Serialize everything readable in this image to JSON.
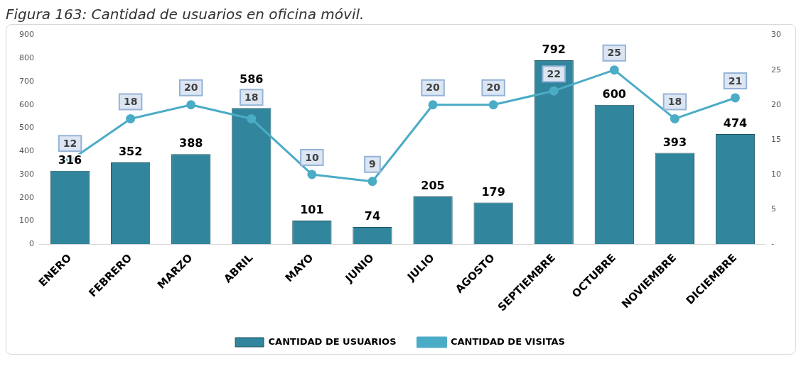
{
  "chart_data": {
    "type": "bar",
    "title": "Figura 163: Cantidad de usuarios en oficina móvil.",
    "categories": [
      "ENERO",
      "FEBRERO",
      "MARZO",
      "ABRIL",
      "MAYO",
      "JUNIO",
      "JULIO",
      "AGOSTO",
      "SEPTIEMBRE",
      "OCTUBRE",
      "NOVIEMBRE",
      "DICIEMBRE"
    ],
    "series": [
      {
        "name": "CANTIDAD DE USUARIOS",
        "color": "#31859c",
        "values": [
          316,
          352,
          388,
          586,
          101,
          74,
          205,
          179,
          792,
          600,
          393,
          474
        ]
      },
      {
        "name": "CANTIDAD DE VISITAS",
        "type": "line",
        "axis": "y2",
        "color": "#4bacc6",
        "marker": "circle",
        "values": [
          12,
          18,
          20,
          18,
          10,
          9,
          20,
          20,
          22,
          25,
          18,
          21
        ]
      }
    ],
    "ylim": [
      0,
      900
    ],
    "yticks": [
      0,
      100,
      200,
      300,
      400,
      500,
      600,
      700,
      800,
      900
    ],
    "y2lim": [
      0,
      30
    ],
    "y2ticks": [
      {
        "value": 0,
        "label": "-"
      },
      5,
      10,
      15,
      20,
      25,
      30
    ],
    "grid": false,
    "legend": "bottom",
    "data_labels": true
  }
}
